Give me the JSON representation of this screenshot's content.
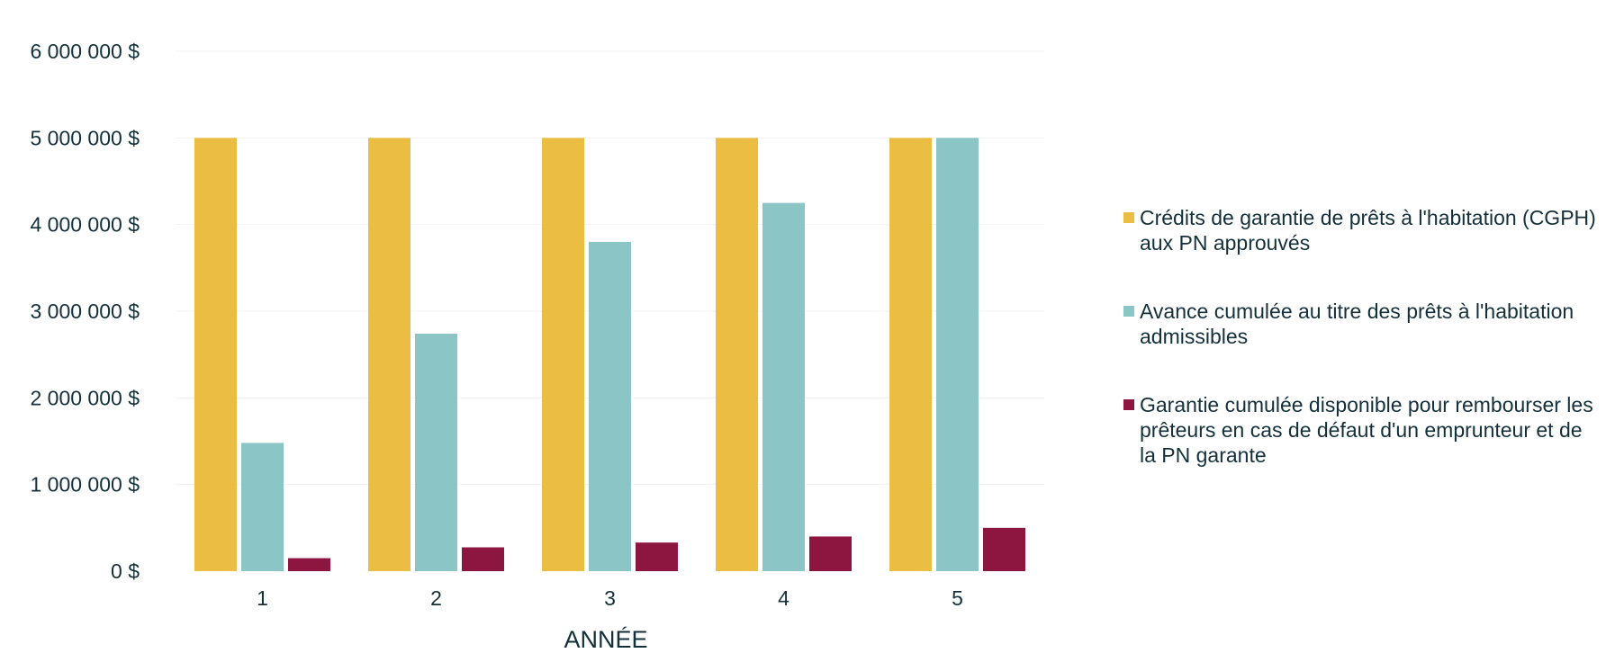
{
  "chart_data": {
    "type": "bar",
    "xlabel": "ANNÉE",
    "ylabel": "",
    "categories": [
      "1",
      "2",
      "3",
      "4",
      "5"
    ],
    "ylim": [
      0,
      6000000
    ],
    "yticks": [
      "0 $",
      "1 000 000 $",
      "2 000 000 $",
      "3 000 000 $",
      "4 000 000 $",
      "5 000 000 $",
      "6 000 000 $"
    ],
    "grid": true,
    "legend_position": "right",
    "series": [
      {
        "name": "Crédits de garantie de prêts à l'habitation (CGPH) aux PN approuvés",
        "color": "#ecbd43",
        "values": [
          5000000,
          5000000,
          5000000,
          5000000,
          5000000
        ]
      },
      {
        "name": "Avance cumulée au titre des prêts à l'habitation admissibles",
        "color": "#8bc5c6",
        "values": [
          1480000,
          2740000,
          3800000,
          4250000,
          5000000
        ]
      },
      {
        "name": "Garantie cumulée disponible pour rembourser les prêteurs en cas de défaut d'un emprunteur et de la PN garante",
        "color": "#8c163f",
        "values": [
          150000,
          275000,
          330000,
          400000,
          500000
        ]
      }
    ]
  }
}
